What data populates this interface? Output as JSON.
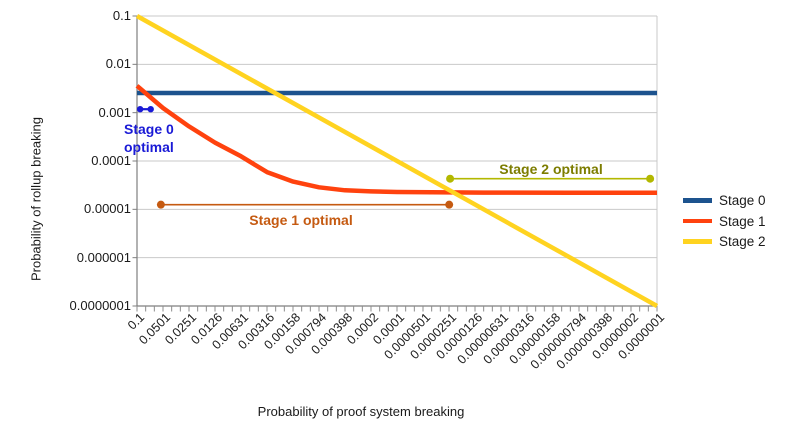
{
  "chart_data": {
    "type": "line",
    "title": "",
    "xlabel": "Probability of proof system breaking",
    "ylabel": "Probability of rollup breaking",
    "x_scale": "log",
    "y_scale": "log",
    "x_range": [
      0.1,
      1e-07
    ],
    "y_range": [
      0.1,
      1e-07
    ],
    "grid": "horizontal decade gridlines, light gray",
    "legend_position": "right-middle",
    "x_tick_labels": [
      "0.1",
      "0.0501",
      "0.0251",
      "0.0126",
      "0.00631",
      "0.00316",
      "0.00158",
      "0.000794",
      "0.000398",
      "0.0002",
      "0.0001",
      "0.0000501",
      "0.0000251",
      "0.0000126",
      "0.00000631",
      "0.00000316",
      "0.00000158",
      "0.000000794",
      "0.000000398",
      "0.0000002",
      "0.0000001"
    ],
    "y_tick_labels": [
      "0.1",
      "0.01",
      "0.001",
      "0.0001",
      "0.00001",
      "0.000001",
      "0.0000001"
    ],
    "series": [
      {
        "name": "Stage 0",
        "color": "#1d538e",
        "points": [
          [
            0.1,
            0.00255
          ],
          [
            1e-07,
            0.00255
          ]
        ]
      },
      {
        "name": "Stage 1",
        "color": "#ff420e",
        "points": [
          [
            0.1,
            0.0036
          ],
          [
            0.0501,
            0.00125
          ],
          [
            0.0251,
            0.00052
          ],
          [
            0.0126,
            0.00024
          ],
          [
            0.00631,
            0.000125
          ],
          [
            0.00316,
            5.9e-05
          ],
          [
            0.00158,
            3.75e-05
          ],
          [
            0.000794,
            2.85e-05
          ],
          [
            0.000398,
            2.48e-05
          ],
          [
            0.0002,
            2.35e-05
          ],
          [
            0.0001,
            2.28e-05
          ],
          [
            1e-05,
            2.22e-05
          ],
          [
            1e-06,
            2.2e-05
          ],
          [
            1e-07,
            2.2e-05
          ]
        ]
      },
      {
        "name": "Stage 2",
        "color": "#ffd320",
        "points": [
          [
            0.1,
            0.1
          ],
          [
            1e-07,
            1e-07
          ]
        ]
      }
    ],
    "annotations": [
      {
        "id": "stage-0-optimal",
        "label_lines": [
          "Stage 0",
          "optimal"
        ],
        "line_color": "#1a1ad6",
        "text_color": "#1a1ad6",
        "y": 0.00118,
        "x_start": 0.092,
        "x_end": 0.0695,
        "dot_radius": 3.2,
        "line_width": 2.2
      },
      {
        "id": "stage-1-optimal",
        "label_lines": [
          "Stage 1 optimal"
        ],
        "line_color": "#c55a11",
        "text_color": "#c55a11",
        "y": 1.25e-05,
        "x_start": 0.053,
        "x_end": 2.5e-05,
        "dot_radius": 4,
        "line_width": 1.6
      },
      {
        "id": "stage-2-optimal",
        "label_lines": [
          "Stage 2 optimal"
        ],
        "line_color": "#b3b800",
        "text_color": "#7d7d00",
        "y": 4.3e-05,
        "x_start": 2.44e-05,
        "x_end": 1.2e-07,
        "dot_radius": 4,
        "line_width": 1.6
      }
    ]
  }
}
